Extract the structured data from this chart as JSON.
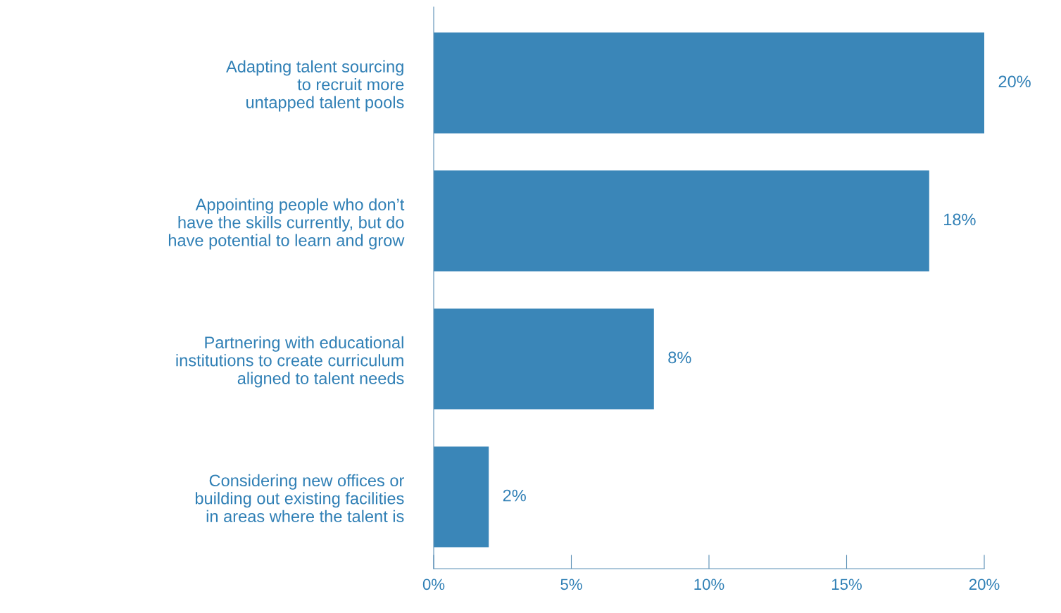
{
  "chart_data": {
    "type": "bar",
    "orientation": "horizontal",
    "categories": [
      "Adapting talent sourcing\nto recruit more\nuntapped talent pools",
      "Appointing people who don’t\nhave the skills currently, but do\nhave potential to learn and grow",
      "Partnering with educational\ninstitutions to create curriculum\naligned to talent needs",
      "Considering new offices or\nbuilding out existing facilities\nin areas where the talent is"
    ],
    "values": [
      20,
      18,
      8,
      2
    ],
    "color": "#3a86b8",
    "data_labels": true,
    "value_labels": [
      "20%",
      "18%",
      "8%",
      "2%"
    ],
    "xlim": [
      0,
      20
    ],
    "xticks": [
      {
        "value": 0,
        "label": "0%"
      },
      {
        "value": 5,
        "label": "5%"
      },
      {
        "value": 10,
        "label": "10%"
      },
      {
        "value": 15,
        "label": "15%"
      },
      {
        "value": 20,
        "label": "20%"
      }
    ],
    "grid": false,
    "legend": false
  }
}
